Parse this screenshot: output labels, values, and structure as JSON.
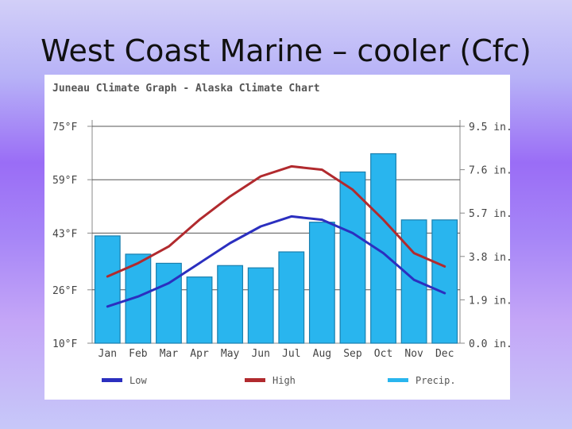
{
  "slide": {
    "title": "West Coast Marine – cooler (Cfc)"
  },
  "chart_data": {
    "type": "bar+line",
    "title": "Juneau Climate Graph - Alaska Climate Chart",
    "categories": [
      "Jan",
      "Feb",
      "Mar",
      "Apr",
      "May",
      "Jun",
      "Jul",
      "Aug",
      "Sep",
      "Oct",
      "Nov",
      "Dec"
    ],
    "temp_axis": {
      "label_ticks": [
        "10°F",
        "26°F",
        "43°F",
        "59°F",
        "75°F"
      ],
      "range": [
        10,
        75
      ]
    },
    "precip_axis": {
      "label_ticks": [
        "0.0 in.",
        "1.9 in.",
        "3.8 in.",
        "5.7 in.",
        "7.6 in.",
        "9.5 in."
      ],
      "range": [
        0,
        9.5
      ]
    },
    "series": [
      {
        "name": "Low",
        "color": "#2b2fbf",
        "kind": "line",
        "axis": "temp",
        "values": [
          21,
          24,
          28,
          34,
          40,
          45,
          48,
          47,
          43,
          37,
          29,
          25
        ]
      },
      {
        "name": "High",
        "color": "#b12a2e",
        "kind": "line",
        "axis": "temp",
        "values": [
          30,
          34,
          39,
          47,
          54,
          60,
          63,
          62,
          56,
          47,
          37,
          33
        ]
      },
      {
        "name": "Precip.",
        "color": "#29b5ee",
        "kind": "bar",
        "axis": "precip",
        "values": [
          4.7,
          3.9,
          3.5,
          2.9,
          3.4,
          3.3,
          4.0,
          5.3,
          7.5,
          8.3,
          5.4,
          5.4
        ]
      }
    ],
    "grid": true,
    "legend": "bottom"
  }
}
